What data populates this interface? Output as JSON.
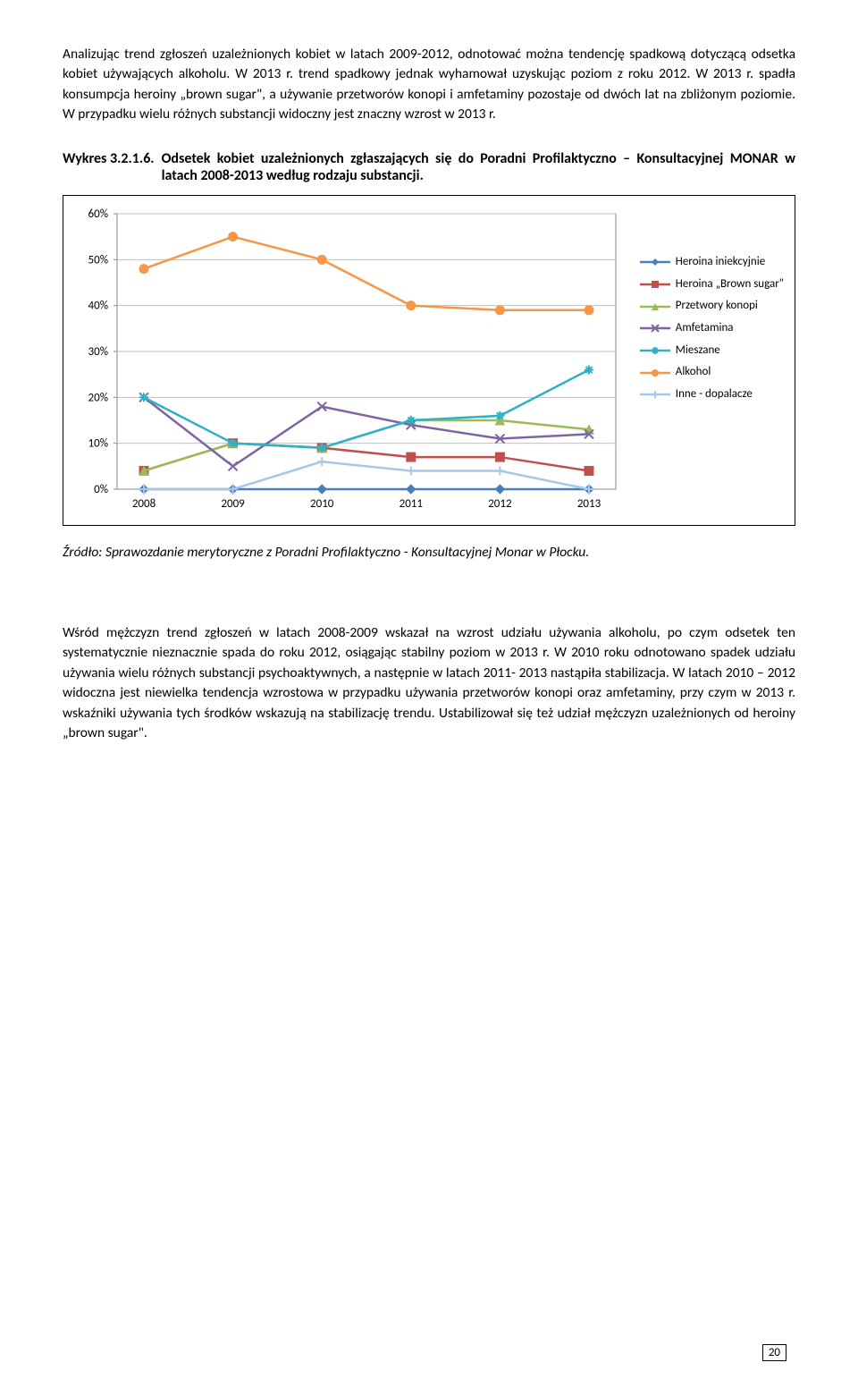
{
  "intro_paragraph": "Analizując trend zgłoszeń uzależnionych kobiet w latach 2009-2012, odnotować można tendencję spadkową dotyczącą odsetka kobiet używających alkoholu. W 2013 r. trend spadkowy jednak wyhamował uzyskując poziom z roku 2012. W 2013 r. spadła konsumpcja heroiny „brown sugar\", a używanie przetworów konopi i amfetaminy pozostaje od dwóch lat na zbliżonym poziomie. W przypadku wielu różnych substancji widoczny jest znaczny wzrost w 2013 r.",
  "chart_title_prefix": "Wykres 3.2.1.6.",
  "chart_title_body": "Odsetek kobiet uzależnionych zgłaszających się do Poradni Profilaktyczno – Konsultacyjnej MONAR w latach 2008-2013 według rodzaju substancji.",
  "source_text": "Źródło: Sprawozdanie merytoryczne z Poradni Profilaktyczno - Konsultacyjnej Monar w Płocku.",
  "second_paragraph": "Wśród mężczyzn trend zgłoszeń w latach 2008-2009 wskazał na wzrost udziału używania alkoholu, po czym odsetek ten systematycznie nieznacznie spada do roku 2012, osiągając stabilny poziom w 2013 r. W 2010 roku odnotowano spadek udziału używania wielu różnych substancji psychoaktywnych, a następnie w latach 2011- 2013 nastąpiła stabilizacja. W latach 2010 – 2012 widoczna jest niewielka tendencja wzrostowa w przypadku używania przetworów konopi oraz amfetaminy, przy czym w 2013 r. wskaźniki używania tych środków wskazują na stabilizację trendu. Ustabilizował się też udział mężczyzn uzależnionych od heroiny „brown sugar\".",
  "page_number": "20",
  "chart": {
    "type": "line",
    "background_color": "#ffffff",
    "grid_color": "#c0c0c0",
    "border_color": "#888888",
    "axis_font_size": 13,
    "legend_font_size": 13,
    "x_categories": [
      "2008",
      "2009",
      "2010",
      "2011",
      "2012",
      "2013"
    ],
    "y_ticks": [
      "0%",
      "10%",
      "20%",
      "30%",
      "40%",
      "50%",
      "60%"
    ],
    "ylim": [
      0,
      60
    ],
    "series": [
      {
        "name": "Heroina iniekcyjnie",
        "color": "#4a7ebb",
        "marker": "diamond",
        "values": [
          0,
          0,
          0,
          0,
          0,
          0
        ]
      },
      {
        "name": "Heroina „Brown sugar\"",
        "color": "#c0504d",
        "marker": "square",
        "values": [
          4,
          10,
          9,
          7,
          7,
          4
        ]
      },
      {
        "name": "Przetwory konopi",
        "color": "#9bbb59",
        "marker": "triangle",
        "values": [
          4,
          10,
          9,
          15,
          15,
          13
        ]
      },
      {
        "name": "Amfetamina",
        "color": "#8064a2",
        "marker": "x",
        "values": [
          20,
          5,
          18,
          14,
          11,
          12
        ]
      },
      {
        "name": "Mieszane",
        "color": "#2eb1c3",
        "marker": "star",
        "values": [
          20,
          10,
          9,
          15,
          16,
          26
        ]
      },
      {
        "name": "Alkohol",
        "color": "#f79646",
        "marker": "circle",
        "values": [
          48,
          55,
          50,
          40,
          39,
          39
        ]
      },
      {
        "name": "Inne - dopalacze",
        "color": "#a6c7e8",
        "marker": "plus",
        "values": [
          0,
          0,
          6,
          4,
          4,
          0
        ]
      }
    ]
  }
}
